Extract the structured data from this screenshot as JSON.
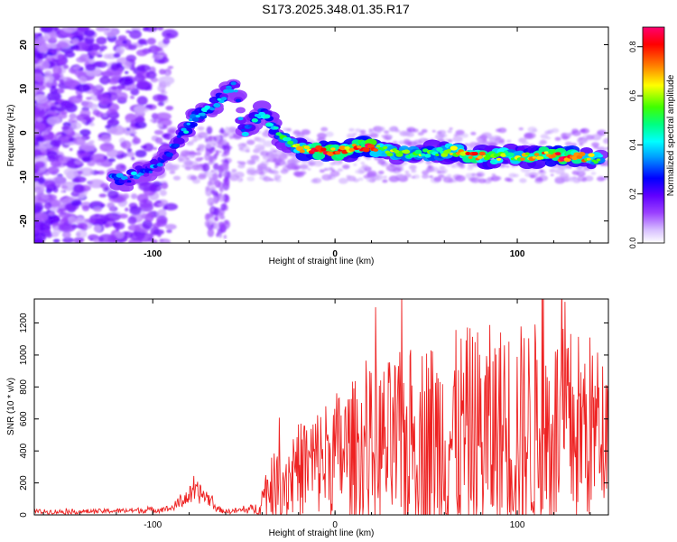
{
  "title": "S173.2025.348.01.35.R17",
  "colors": {
    "spec_purple": "#8a2be2",
    "snr_line": "#ee2222",
    "colorbar": [
      "#ffffff",
      "#c8a0ff",
      "#8000ff",
      "#0000ff",
      "#00c8ff",
      "#00ff80",
      "#40ff00",
      "#ffff00",
      "#ff8000",
      "#ff0000",
      "#ff0080"
    ]
  },
  "chart_data": [
    {
      "type": "heatmap",
      "title": "S173.2025.348.01.35.R17",
      "xlabel": "Height of straight line (km)",
      "ylabel": "Frequency (Hz)",
      "xlim": [
        -165,
        150
      ],
      "ylim": [
        -25,
        24
      ],
      "xticks": [
        -100,
        0,
        100
      ],
      "xtick_labels": [
        "-100",
        "0",
        "100"
      ],
      "yticks": [
        20,
        10,
        0,
        -10,
        -20
      ],
      "ytick_labels": [
        "20",
        "10",
        "0",
        "-10",
        "-20"
      ],
      "ridge": [
        {
          "x": -120,
          "f": -10,
          "a": 0.35
        },
        {
          "x": -115,
          "f": -11,
          "a": 0.3
        },
        {
          "x": -108,
          "f": -9,
          "a": 0.35
        },
        {
          "x": -100,
          "f": -8,
          "a": 0.3
        },
        {
          "x": -92,
          "f": -5,
          "a": 0.3
        },
        {
          "x": -85,
          "f": -1,
          "a": 0.35
        },
        {
          "x": -78,
          "f": 3,
          "a": 0.4
        },
        {
          "x": -70,
          "f": 5,
          "a": 0.35
        },
        {
          "x": -62,
          "f": 8,
          "a": 0.35
        },
        {
          "x": -55,
          "f": 11,
          "a": 0.3
        },
        {
          "x": -50,
          "f": 0,
          "a": 0.3
        },
        {
          "x": -45,
          "f": 3,
          "a": 0.35
        },
        {
          "x": -40,
          "f": 4.5,
          "a": 0.45
        },
        {
          "x": -35,
          "f": 2,
          "a": 0.4
        },
        {
          "x": -30,
          "f": -1,
          "a": 0.45
        },
        {
          "x": -20,
          "f": -3.5,
          "a": 0.6
        },
        {
          "x": -10,
          "f": -4,
          "a": 0.8
        },
        {
          "x": 0,
          "f": -4.5,
          "a": 0.75
        },
        {
          "x": 10,
          "f": -3.5,
          "a": 0.7
        },
        {
          "x": 18,
          "f": -3,
          "a": 0.85
        },
        {
          "x": 25,
          "f": -4,
          "a": 0.6
        },
        {
          "x": 35,
          "f": -4.5,
          "a": 0.55
        },
        {
          "x": 45,
          "f": -5,
          "a": 0.55
        },
        {
          "x": 55,
          "f": -4.5,
          "a": 0.5
        },
        {
          "x": 65,
          "f": -4,
          "a": 0.6
        },
        {
          "x": 75,
          "f": -5.5,
          "a": 0.75
        },
        {
          "x": 85,
          "f": -5.5,
          "a": 0.6
        },
        {
          "x": 95,
          "f": -5,
          "a": 0.55
        },
        {
          "x": 105,
          "f": -5.5,
          "a": 0.65
        },
        {
          "x": 115,
          "f": -5,
          "a": 0.7
        },
        {
          "x": 125,
          "f": -5.5,
          "a": 0.8
        },
        {
          "x": 135,
          "f": -5.5,
          "a": 0.7
        },
        {
          "x": 145,
          "f": -6,
          "a": 0.5
        }
      ]
    },
    {
      "type": "line",
      "xlabel": "Height of straight line (km)",
      "ylabel": "SNR (10 * v/v)",
      "xlim": [
        -165,
        150
      ],
      "ylim": [
        0,
        1350
      ],
      "xticks": [
        -100,
        0,
        100
      ],
      "xtick_labels": [
        "-100",
        "0",
        "100"
      ],
      "yticks": [
        0,
        200,
        400,
        600,
        800,
        1000,
        1200
      ],
      "ytick_labels": [
        "0",
        "200",
        "400",
        "600",
        "800",
        "1000",
        "1200"
      ],
      "envelope": {
        "x": [
          -165,
          -140,
          -120,
          -100,
          -90,
          -85,
          -80,
          -75,
          -70,
          -65,
          -60,
          -50,
          -42,
          -38,
          -30,
          -20,
          -10,
          0,
          10,
          20,
          30,
          40,
          50,
          60,
          70,
          80,
          90,
          100,
          110,
          120,
          130,
          140,
          150
        ],
        "base": [
          20,
          20,
          25,
          30,
          40,
          80,
          120,
          140,
          110,
          40,
          20,
          30,
          40,
          150,
          200,
          280,
          330,
          380,
          400,
          420,
          430,
          450,
          460,
          470,
          480,
          490,
          500,
          510,
          520,
          520,
          530,
          540,
          550
        ],
        "spread": [
          15,
          15,
          15,
          20,
          20,
          40,
          60,
          70,
          50,
          20,
          15,
          20,
          40,
          150,
          250,
          300,
          350,
          400,
          450,
          500,
          550,
          600,
          650,
          650,
          700,
          700,
          700,
          700,
          700,
          650,
          650,
          600,
          400
        ]
      }
    }
  ],
  "colorbar": {
    "label": "Normalized spectral amplitude",
    "ticks": [
      0.0,
      0.2,
      0.4,
      0.6,
      0.8
    ],
    "tick_labels": [
      "0.0",
      "0.2",
      "0.4",
      "0.6",
      "0.8"
    ],
    "max": 0.88
  }
}
